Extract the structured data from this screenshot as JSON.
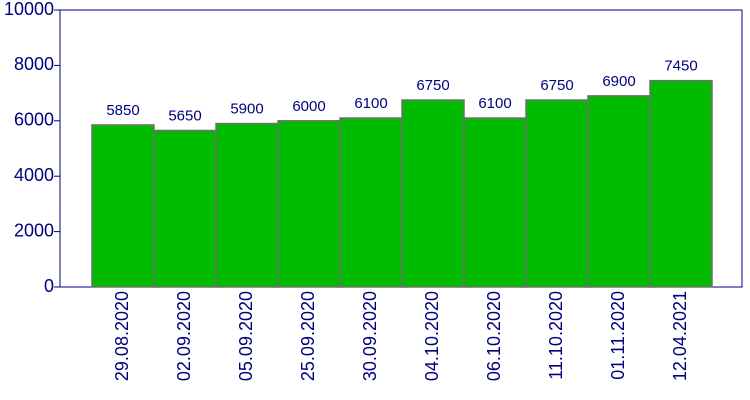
{
  "chart_data": {
    "type": "bar",
    "categories": [
      "29.08.2020",
      "02.09.2020",
      "05.09.2020",
      "25.09.2020",
      "30.09.2020",
      "04.10.2020",
      "06.10.2020",
      "11.10.2020",
      "01.11.2020",
      "12.04.2021"
    ],
    "values": [
      5850,
      5650,
      5900,
      6000,
      6100,
      6750,
      6100,
      6750,
      6900,
      7450
    ],
    "color": "#00bb00",
    "ylim": [
      0,
      10000
    ],
    "yticks": [
      0,
      2000,
      4000,
      6000,
      8000,
      10000
    ]
  }
}
